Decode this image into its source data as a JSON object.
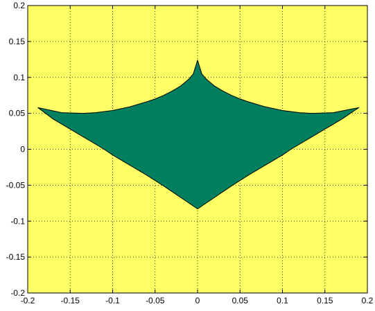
{
  "chart_data": {
    "type": "area",
    "title": "",
    "xlabel": "",
    "ylabel": "",
    "xlim": [
      -0.2,
      0.2
    ],
    "ylim": [
      -0.2,
      0.2
    ],
    "grid": true,
    "grid_style": "dotted",
    "xticks": [
      -0.2,
      -0.15,
      -0.1,
      -0.05,
      0,
      0.05,
      0.1,
      0.15,
      0.2
    ],
    "yticks": [
      -0.2,
      -0.15,
      -0.1,
      -0.05,
      0,
      0.05,
      0.1,
      0.15,
      0.2
    ],
    "xtick_labels": [
      "-0.2",
      "-0.15",
      "-0.1",
      "-0.05",
      "0",
      "0.05",
      "0.1",
      "0.15",
      "0.2"
    ],
    "ytick_labels": [
      "-0.2",
      "-0.15",
      "-0.1",
      "-0.05",
      "0",
      "0.05",
      "0.1",
      "0.15",
      "0.2"
    ],
    "colors": {
      "background": "#ffff66",
      "fill": "#007f5f",
      "outline": "#000000",
      "grid": "#000000"
    },
    "series": [
      {
        "shape": "filled-polygon",
        "x": [
          0.0,
          0.005,
          0.01,
          0.02,
          0.03,
          0.04,
          0.05,
          0.06,
          0.08,
          0.1,
          0.12,
          0.135,
          0.16,
          0.19,
          0.17,
          0.15,
          0.13,
          0.11,
          0.1,
          0.08,
          0.06,
          0.04,
          0.02,
          0.0,
          -0.02,
          -0.04,
          -0.06,
          -0.08,
          -0.1,
          -0.11,
          -0.13,
          -0.15,
          -0.17,
          -0.188,
          -0.16,
          -0.135,
          -0.12,
          -0.1,
          -0.08,
          -0.06,
          -0.05,
          -0.04,
          -0.03,
          -0.02,
          -0.01,
          -0.005
        ],
        "y": [
          0.124,
          0.105,
          0.098,
          0.088,
          0.081,
          0.075,
          0.07,
          0.066,
          0.059,
          0.054,
          0.051,
          0.05,
          0.051,
          0.058,
          0.042,
          0.028,
          0.014,
          0.0,
          -0.008,
          -0.022,
          -0.036,
          -0.051,
          -0.067,
          -0.083,
          -0.067,
          -0.051,
          -0.036,
          -0.022,
          -0.008,
          0.0,
          0.014,
          0.028,
          0.042,
          0.058,
          0.051,
          0.05,
          0.051,
          0.054,
          0.059,
          0.066,
          0.07,
          0.075,
          0.081,
          0.088,
          0.098,
          0.105
        ]
      }
    ]
  }
}
